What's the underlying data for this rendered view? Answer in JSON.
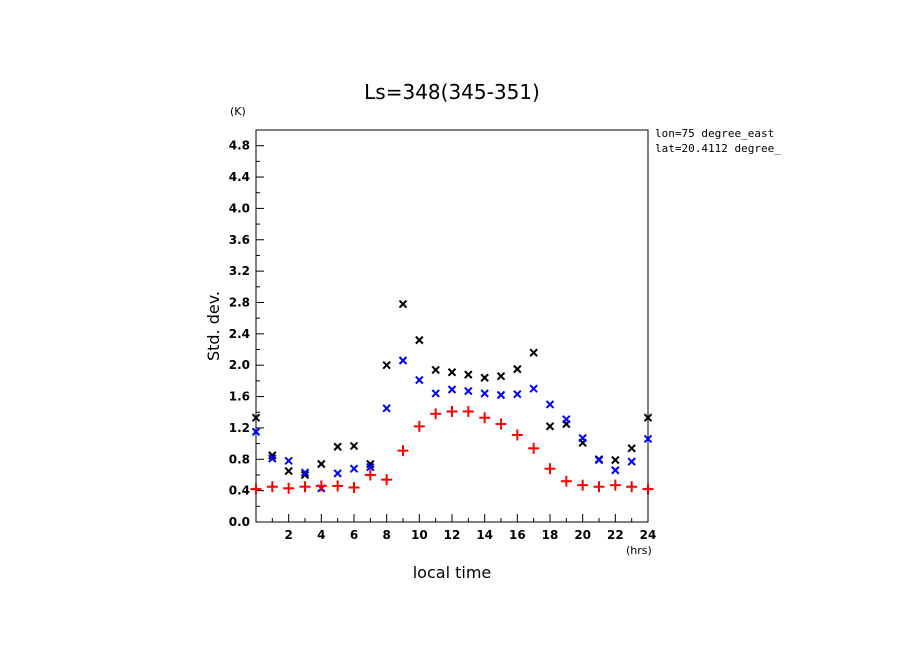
{
  "chart_data": {
    "type": "scatter",
    "title": "Ls=348(345-351)",
    "xlabel": "local time",
    "ylabel": "Std. dev.",
    "x_unit": "(hrs)",
    "y_unit": "(K)",
    "xlim": [
      0,
      24
    ],
    "ylim": [
      0,
      5.0
    ],
    "x_ticks": [
      "2",
      "4",
      "6",
      "8",
      "10",
      "12",
      "14",
      "16",
      "18",
      "20",
      "22",
      "24"
    ],
    "y_ticks": [
      "0.0",
      "0.4",
      "0.8",
      "1.2",
      "1.6",
      "2.0",
      "2.4",
      "2.8",
      "3.2",
      "3.6",
      "4.0",
      "4.4",
      "4.8"
    ],
    "annotations": [
      "lon=75 degree_east",
      "lat=20.4112 degree_"
    ],
    "grid": false,
    "series": [
      {
        "marker": "x",
        "color": "#000000",
        "x": [
          0,
          1,
          2,
          3,
          4,
          5,
          6,
          7,
          8,
          9,
          10,
          11,
          12,
          13,
          14,
          15,
          16,
          17,
          18,
          19,
          20,
          21,
          22,
          23,
          24
        ],
        "values": [
          1.33,
          0.85,
          0.65,
          0.6,
          0.74,
          0.96,
          0.97,
          0.74,
          2.0,
          2.78,
          2.32,
          1.94,
          1.91,
          1.88,
          1.84,
          1.86,
          1.95,
          2.16,
          1.22,
          1.25,
          1.01,
          0.8,
          0.79,
          0.94,
          1.33
        ]
      },
      {
        "marker": "x",
        "color": "#0000ff",
        "x": [
          0,
          1,
          2,
          3,
          4,
          5,
          6,
          7,
          8,
          9,
          10,
          11,
          12,
          13,
          14,
          15,
          16,
          17,
          18,
          19,
          20,
          21,
          22,
          23,
          24
        ],
        "values": [
          1.15,
          0.81,
          0.78,
          0.63,
          0.43,
          0.62,
          0.68,
          0.7,
          1.45,
          2.06,
          1.81,
          1.64,
          1.69,
          1.67,
          1.64,
          1.62,
          1.63,
          1.7,
          1.5,
          1.31,
          1.07,
          0.79,
          0.66,
          0.77,
          1.06
        ]
      },
      {
        "marker": "+",
        "color": "#ff0000",
        "x": [
          0,
          1,
          2,
          3,
          4,
          5,
          6,
          7,
          8,
          9,
          10,
          11,
          12,
          13,
          14,
          15,
          16,
          17,
          18,
          19,
          20,
          21,
          22,
          23,
          24
        ],
        "values": [
          0.42,
          0.45,
          0.43,
          0.45,
          0.46,
          0.46,
          0.44,
          0.6,
          0.54,
          0.91,
          1.22,
          1.38,
          1.41,
          1.41,
          1.33,
          1.25,
          1.11,
          0.94,
          0.68,
          0.52,
          0.47,
          0.45,
          0.47,
          0.45,
          0.42
        ]
      }
    ]
  }
}
